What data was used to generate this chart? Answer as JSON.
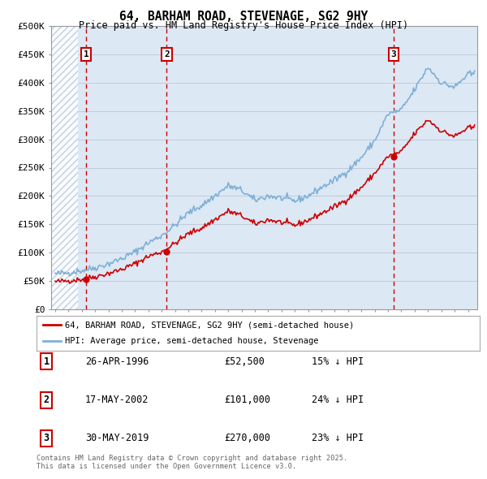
{
  "title": "64, BARHAM ROAD, STEVENAGE, SG2 9HY",
  "subtitle": "Price paid vs. HM Land Registry's House Price Index (HPI)",
  "ylim": [
    0,
    500000
  ],
  "yticks": [
    0,
    50000,
    100000,
    150000,
    200000,
    250000,
    300000,
    350000,
    400000,
    450000,
    500000
  ],
  "ytick_labels": [
    "£0",
    "£50K",
    "£100K",
    "£150K",
    "£200K",
    "£250K",
    "£300K",
    "£350K",
    "£400K",
    "£450K",
    "£500K"
  ],
  "xlim_start": 1993.7,
  "xlim_end": 2025.7,
  "plot_bg_color": "#dde8f5",
  "grid_color": "#c0ccdc",
  "sale_dates": [
    1996.32,
    2002.38,
    2019.41
  ],
  "sale_prices": [
    52500,
    101000,
    270000
  ],
  "sale_labels": [
    "1",
    "2",
    "3"
  ],
  "sale_color": "#cc0000",
  "hpi_color": "#7eb0d5",
  "vline_color": "#cc0000",
  "legend_entries": [
    "64, BARHAM ROAD, STEVENAGE, SG2 9HY (semi-detached house)",
    "HPI: Average price, semi-detached house, Stevenage"
  ],
  "table_data": [
    [
      "1",
      "26-APR-1996",
      "£52,500",
      "15% ↓ HPI"
    ],
    [
      "2",
      "17-MAY-2002",
      "£101,000",
      "24% ↓ HPI"
    ],
    [
      "3",
      "30-MAY-2019",
      "£270,000",
      "23% ↓ HPI"
    ]
  ],
  "footer": "Contains HM Land Registry data © Crown copyright and database right 2025.\nThis data is licensed under the Open Government Licence v3.0."
}
